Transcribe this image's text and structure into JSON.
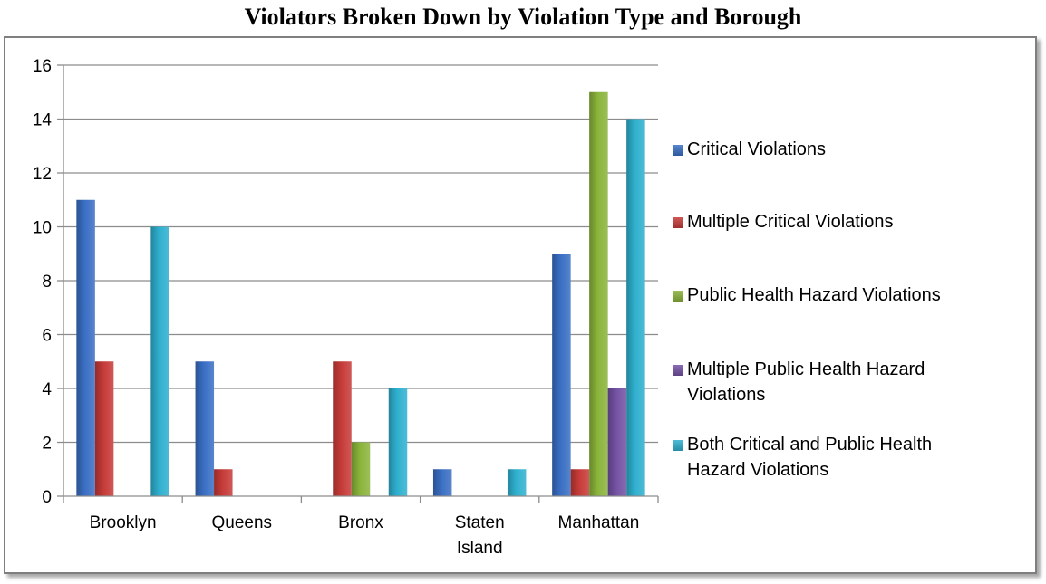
{
  "chart_data": {
    "type": "bar",
    "title": "Violators Broken Down by Violation Type and Borough",
    "categories": [
      [
        "Brooklyn"
      ],
      [
        "Queens"
      ],
      [
        "Bronx"
      ],
      [
        "Staten",
        "Island"
      ],
      [
        "Manhattan"
      ]
    ],
    "series": [
      {
        "name": "Critical Violations",
        "values": [
          11,
          5,
          0,
          1,
          9
        ],
        "color": "#3a6fc4"
      },
      {
        "name": "Multiple Critical Violations",
        "values": [
          5,
          1,
          5,
          0,
          1
        ],
        "color": "#c63b38"
      },
      {
        "name": "Public Health Hazard Violations",
        "values": [
          0,
          0,
          2,
          0,
          15
        ],
        "color": "#8ab43b"
      },
      {
        "name": "Multiple Public Health Hazard Violations",
        "values": [
          0,
          0,
          0,
          0,
          4
        ],
        "color": "#7452a4"
      },
      {
        "name": "Both Critical and Public Health Hazard Violations",
        "values": [
          10,
          0,
          4,
          1,
          14
        ],
        "color": "#2fb0cf"
      }
    ],
    "legend_lines": [
      [
        "Critical Violations"
      ],
      [
        "Multiple Critical Violations"
      ],
      [
        "Public Health Hazard Violations"
      ],
      [
        "Multiple Public Health Hazard",
        "Violations"
      ],
      [
        "Both Critical and Public Health",
        "Hazard Violations"
      ]
    ],
    "y_ticks": [
      0,
      2,
      4,
      6,
      8,
      10,
      12,
      14,
      16
    ],
    "ylim": [
      0,
      16
    ],
    "xlabel": "",
    "ylabel": "",
    "grid": true,
    "legend_position": "right"
  }
}
